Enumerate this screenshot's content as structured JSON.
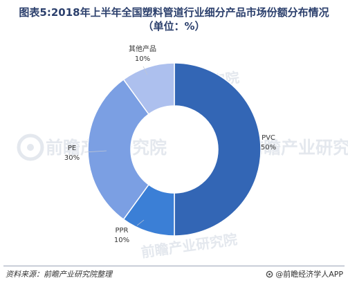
{
  "header": {
    "title_line1": "图表5:2018年上半年全国塑料管道行业细分产品市场份额分布情况",
    "title_line2": "（单位：%）"
  },
  "watermark": {
    "text": "前瞻产业研究院"
  },
  "footer": {
    "source": "资料来源：前瞻产业研究院整理",
    "brand": "@前瞻经济学人APP"
  },
  "chart_data": {
    "type": "pie",
    "variant": "donut",
    "title": "图表5:2018年上半年全国塑料管道行业细分产品市场份额分布情况（单位：%）",
    "unit": "%",
    "start_angle": "12 o'clock",
    "direction": "clockwise",
    "slices": [
      {
        "name": "PVC",
        "value": 50,
        "label": "50%",
        "color": "#3366b5"
      },
      {
        "name": "PPR",
        "value": 10,
        "label": "10%",
        "color": "#3b7fd6"
      },
      {
        "name": "PE",
        "value": 30,
        "label": "30%",
        "color": "#7b9fe3"
      },
      {
        "name": "其他产品",
        "value": 10,
        "label": "10%",
        "color": "#adc0ee"
      }
    ],
    "legend": "none"
  }
}
